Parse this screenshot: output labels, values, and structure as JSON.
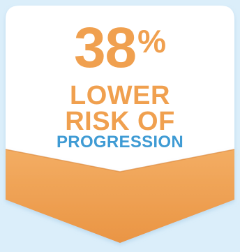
{
  "badge": {
    "stat_number": "38",
    "stat_unit": "%",
    "line1": "LOWER",
    "line2": "RISK OF",
    "line3": "PROGRESSION"
  },
  "colors": {
    "background": "#dbeefa",
    "card": "#ffffff",
    "accent_orange": "#f0a04f",
    "accent_orange_dark": "#e58a35",
    "accent_blue": "#3f9bd4"
  }
}
